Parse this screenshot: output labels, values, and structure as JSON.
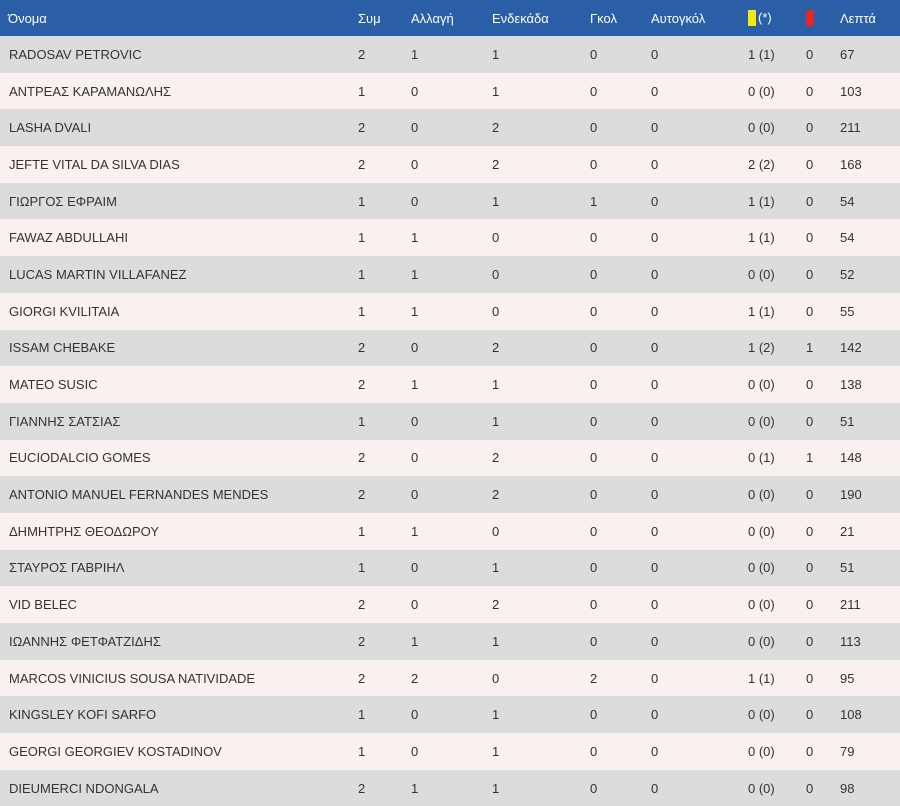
{
  "colors": {
    "header_background": "#2a5ea6",
    "header_text": "#ffffff",
    "row_odd": "#dcdcdc",
    "row_even": "#f9f0f0",
    "yellow_card": "#f5e90c",
    "red_card": "#e3262b"
  },
  "header": {
    "name": "Όνομα",
    "appearances": "Συμ",
    "substitute": "Αλλαγή",
    "starting": "Ενδεκάδα",
    "goals": "Γκολ",
    "own_goals": "Αυτογκόλ",
    "yellow_icon": "yellow-card-icon",
    "yellow_suffix": "(*)",
    "red_icon": "red-card-icon",
    "minutes": "Λεπτά"
  },
  "rows": [
    {
      "name": "RADOSAV PETROVIC",
      "apps": "2",
      "sub": "1",
      "start": "1",
      "goals": "0",
      "own": "0",
      "yellow": "1 (1)",
      "red": "0",
      "mins": "67"
    },
    {
      "name": "ΑΝΤΡΕΑΣ ΚΑΡΑΜΑΝΩΛΗΣ",
      "apps": "1",
      "sub": "0",
      "start": "1",
      "goals": "0",
      "own": "0",
      "yellow": "0 (0)",
      "red": "0",
      "mins": "103"
    },
    {
      "name": "LASHA DVALI",
      "apps": "2",
      "sub": "0",
      "start": "2",
      "goals": "0",
      "own": "0",
      "yellow": "0 (0)",
      "red": "0",
      "mins": "211"
    },
    {
      "name": "JEFTE VITAL DA SILVA DIAS",
      "apps": "2",
      "sub": "0",
      "start": "2",
      "goals": "0",
      "own": "0",
      "yellow": "2 (2)",
      "red": "0",
      "mins": "168"
    },
    {
      "name": "ΓΙΩΡΓΟΣ ΕΦΡΑΙΜ",
      "apps": "1",
      "sub": "0",
      "start": "1",
      "goals": "1",
      "own": "0",
      "yellow": "1 (1)",
      "red": "0",
      "mins": "54"
    },
    {
      "name": "FAWAZ ABDULLAHI",
      "apps": "1",
      "sub": "1",
      "start": "0",
      "goals": "0",
      "own": "0",
      "yellow": "1 (1)",
      "red": "0",
      "mins": "54"
    },
    {
      "name": "LUCAS MARTIN VILLAFANEZ",
      "apps": "1",
      "sub": "1",
      "start": "0",
      "goals": "0",
      "own": "0",
      "yellow": "0 (0)",
      "red": "0",
      "mins": "52"
    },
    {
      "name": "GIORGI KVILITAIA",
      "apps": "1",
      "sub": "1",
      "start": "0",
      "goals": "0",
      "own": "0",
      "yellow": "1 (1)",
      "red": "0",
      "mins": "55"
    },
    {
      "name": "ISSAM CHEBAKE",
      "apps": "2",
      "sub": "0",
      "start": "2",
      "goals": "0",
      "own": "0",
      "yellow": "1 (2)",
      "red": "1",
      "mins": "142"
    },
    {
      "name": "MATEO SUSIC",
      "apps": "2",
      "sub": "1",
      "start": "1",
      "goals": "0",
      "own": "0",
      "yellow": "0 (0)",
      "red": "0",
      "mins": "138"
    },
    {
      "name": "ΓΙΑΝΝΗΣ ΣΑΤΣΙΑΣ",
      "apps": "1",
      "sub": "0",
      "start": "1",
      "goals": "0",
      "own": "0",
      "yellow": "0 (0)",
      "red": "0",
      "mins": "51"
    },
    {
      "name": "EUCIODALCIO GOMES",
      "apps": "2",
      "sub": "0",
      "start": "2",
      "goals": "0",
      "own": "0",
      "yellow": "0 (1)",
      "red": "1",
      "mins": "148"
    },
    {
      "name": "ANTONIO MANUEL FERNANDES MENDES",
      "apps": "2",
      "sub": "0",
      "start": "2",
      "goals": "0",
      "own": "0",
      "yellow": "0 (0)",
      "red": "0",
      "mins": "190"
    },
    {
      "name": "ΔΗΜΗΤΡΗΣ ΘΕΟΔΩΡΟΥ",
      "apps": "1",
      "sub": "1",
      "start": "0",
      "goals": "0",
      "own": "0",
      "yellow": "0 (0)",
      "red": "0",
      "mins": "21"
    },
    {
      "name": "ΣΤΑΥΡΟΣ ΓΑΒΡΙΗΛ",
      "apps": "1",
      "sub": "0",
      "start": "1",
      "goals": "0",
      "own": "0",
      "yellow": "0 (0)",
      "red": "0",
      "mins": "51"
    },
    {
      "name": "VID BELEC",
      "apps": "2",
      "sub": "0",
      "start": "2",
      "goals": "0",
      "own": "0",
      "yellow": "0 (0)",
      "red": "0",
      "mins": "211"
    },
    {
      "name": "ΙΩΑΝΝΗΣ ΦΕΤΦΑΤΖΙΔΗΣ",
      "apps": "2",
      "sub": "1",
      "start": "1",
      "goals": "0",
      "own": "0",
      "yellow": "0 (0)",
      "red": "0",
      "mins": "113"
    },
    {
      "name": "MARCOS VINICIUS SOUSA NATIVIDADE",
      "apps": "2",
      "sub": "2",
      "start": "0",
      "goals": "2",
      "own": "0",
      "yellow": "1 (1)",
      "red": "0",
      "mins": "95"
    },
    {
      "name": "KINGSLEY KOFI SARFO",
      "apps": "1",
      "sub": "0",
      "start": "1",
      "goals": "0",
      "own": "0",
      "yellow": "0 (0)",
      "red": "0",
      "mins": "108"
    },
    {
      "name": "GEORGI GEORGIEV KOSTADINOV",
      "apps": "1",
      "sub": "0",
      "start": "1",
      "goals": "0",
      "own": "0",
      "yellow": "0 (0)",
      "red": "0",
      "mins": "79"
    },
    {
      "name": "DIEUMERCI NDONGALA",
      "apps": "2",
      "sub": "1",
      "start": "1",
      "goals": "0",
      "own": "0",
      "yellow": "0 (0)",
      "red": "0",
      "mins": "98"
    }
  ]
}
